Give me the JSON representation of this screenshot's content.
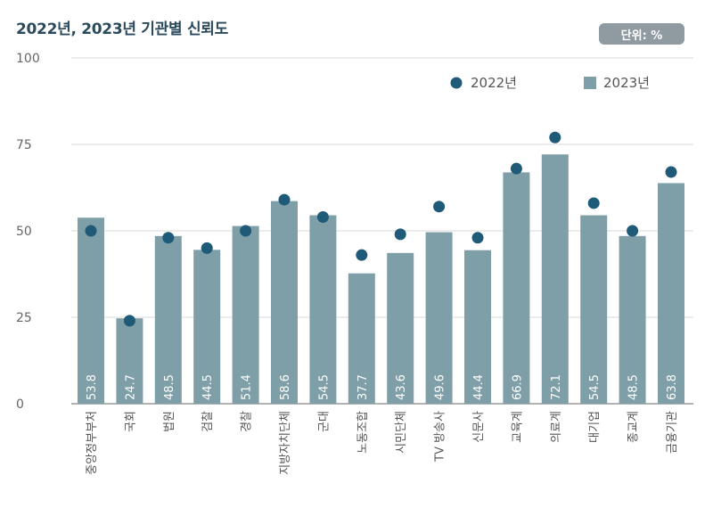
{
  "header": {
    "title": "2022년, 2023년 기관별 신뢰도",
    "unit": "단위: %"
  },
  "colors": {
    "bar": "#7f9fa8",
    "dot": "#1f5a78",
    "grid": "#d9d9d9",
    "axis": "#999999"
  },
  "chart_data": {
    "type": "bar",
    "title": "2022년, 2023년 기관별 신뢰도",
    "xlabel": "",
    "ylabel": "",
    "ylim": [
      0,
      100
    ],
    "yticks": [
      0,
      25,
      50,
      75,
      100
    ],
    "categories": [
      "중앙정부부처",
      "국회",
      "법원",
      "검찰",
      "경찰",
      "지방자치단체",
      "군대",
      "노동조합",
      "시민단체",
      "TV 방송사",
      "신문사",
      "교육계",
      "의료계",
      "대기업",
      "종교계",
      "금융기관"
    ],
    "series": [
      {
        "name": "2023년",
        "style": "bar",
        "values": [
          53.8,
          24.7,
          48.5,
          44.5,
          51.4,
          58.6,
          54.5,
          37.7,
          43.6,
          49.6,
          44.4,
          66.9,
          72.1,
          54.5,
          48.5,
          63.8
        ],
        "labels": [
          "53.8",
          "24.7",
          "48.5",
          "44.5",
          "51.4",
          "58.6",
          "54.5",
          "37.7",
          "43.6",
          "49.6",
          "44.4",
          "66.9",
          "72.1",
          "54.5",
          "48.5",
          "63.8"
        ]
      },
      {
        "name": "2022년",
        "style": "dot",
        "values": [
          50,
          24,
          48,
          45,
          50,
          59,
          54,
          43,
          49,
          57,
          48,
          68,
          77,
          58,
          50,
          67
        ]
      }
    ],
    "legend": {
      "placement": "top-right",
      "entries": [
        "2022년",
        "2023년"
      ]
    },
    "grid": true
  }
}
